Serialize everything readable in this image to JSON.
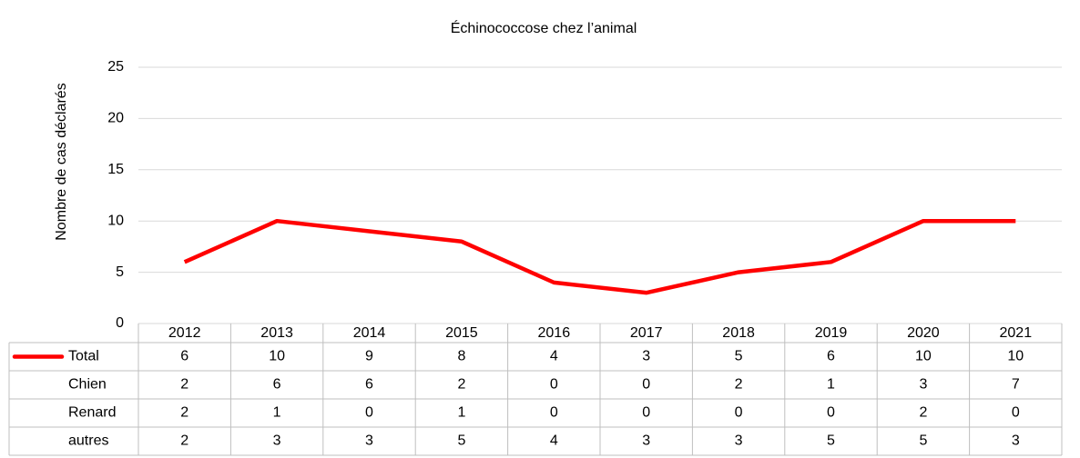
{
  "chart_data": {
    "type": "line",
    "title": "Échinococcose chez l’animal",
    "y_label": "Nombre de cas déclarés",
    "categories": [
      "2012",
      "2013",
      "2014",
      "2015",
      "2016",
      "2017",
      "2018",
      "2019",
      "2020",
      "2021"
    ],
    "series": [
      {
        "name": "Total",
        "color": "#ff0000",
        "values": [
          6,
          10,
          9,
          8,
          4,
          3,
          5,
          6,
          10,
          10
        ]
      },
      {
        "name": "Chien",
        "values": [
          2,
          6,
          6,
          2,
          0,
          0,
          2,
          1,
          3,
          7
        ]
      },
      {
        "name": "Renard",
        "values": [
          2,
          1,
          0,
          1,
          0,
          0,
          0,
          0,
          2,
          0
        ]
      },
      {
        "name": "autres",
        "values": [
          2,
          3,
          3,
          5,
          4,
          3,
          3,
          5,
          5,
          3
        ]
      }
    ],
    "ylim": [
      0,
      25
    ],
    "yticks": [
      0,
      5,
      10,
      15,
      20,
      25
    ],
    "grid": true,
    "data_table": true
  }
}
